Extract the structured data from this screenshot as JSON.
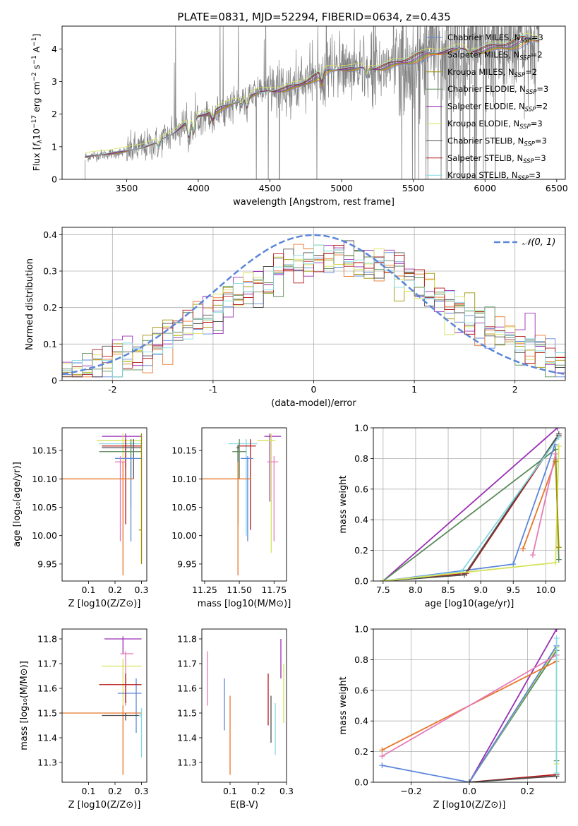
{
  "figure": {
    "title": "PLATE=0831, MJD=52294, FIBERID=0634, z=0.435"
  },
  "colors": {
    "chabrier_miles": "#5b86d9",
    "salpeter_miles": "#e8762b",
    "kroupa_miles": "#9e9200",
    "chabrier_elodie": "#5a8a5a",
    "salpeter_elodie": "#9b2fb4",
    "kroupa_elodie": "#d6e35a",
    "chabrier_stelib": "#505050",
    "salpeter_stelib": "#b41a1a",
    "kroupa_stelib": "#86d9e0",
    "pink": "#e67ab8",
    "data_gray": "#808080",
    "normal_curve": "#5b86d9"
  },
  "chart_data": [
    {
      "id": "spectrum",
      "type": "line",
      "title": "PLATE=0831, MJD=52294, FIBERID=0634, z=0.435",
      "xlabel": "wavelength [Angstrom, rest frame]",
      "ylabel": "Flux [f_λ 10^-17 erg cm^-2 s^-1 A^-1]",
      "xlim": [
        3050,
        6560
      ],
      "ylim": [
        0,
        4.7
      ],
      "xticks": [
        3500,
        4000,
        4500,
        5000,
        5500,
        6000,
        6500
      ],
      "yticks": [
        0,
        1,
        2,
        3,
        4
      ],
      "grid": false,
      "legend_position": "top-right",
      "legend": [
        {
          "base": "Chabrier MILES, N",
          "sub": "SSP",
          "val": "=3",
          "color": "#5b86d9"
        },
        {
          "base": "Salpeter MILES, N",
          "sub": "SSP",
          "val": "=2",
          "color": "#e8762b"
        },
        {
          "base": "Kroupa MILES, N",
          "sub": "SSP",
          "val": "=2",
          "color": "#9e9200"
        },
        {
          "base": "Chabrier ELODIE, N",
          "sub": "SSP",
          "val": "=3",
          "color": "#5a8a5a"
        },
        {
          "base": "Salpeter ELODIE, N",
          "sub": "SSP",
          "val": "=2",
          "color": "#9b2fb4"
        },
        {
          "base": "Kroupa ELODIE, N",
          "sub": "SSP",
          "val": "=3",
          "color": "#d6e35a"
        },
        {
          "base": "Chabrier STELIB, N",
          "sub": "SSP",
          "val": "=3",
          "color": "#505050"
        },
        {
          "base": "Salpeter STELIB, N",
          "sub": "SSP",
          "val": "=3",
          "color": "#b41a1a"
        },
        {
          "base": "Kroupa STELIB, N",
          "sub": "SSP",
          "val": "=3",
          "color": "#86d9e0"
        }
      ],
      "continuum": {
        "x": [
          3210,
          3300,
          3400,
          3500,
          3600,
          3700,
          3800,
          3900,
          4000,
          4100,
          4200,
          4300,
          4400,
          4500,
          4600,
          4700,
          4800,
          4900,
          5000,
          5100,
          5200,
          5300,
          5400,
          5500,
          5600,
          5700,
          5800,
          5900,
          6000,
          6100,
          6200,
          6300,
          6400
        ],
        "y": [
          0.7,
          0.75,
          0.8,
          0.85,
          0.95,
          1.1,
          1.35,
          1.7,
          1.95,
          2.05,
          2.2,
          2.4,
          2.6,
          2.75,
          2.8,
          2.9,
          3.1,
          3.25,
          3.35,
          3.35,
          3.45,
          3.5,
          3.6,
          3.7,
          3.75,
          3.85,
          3.95,
          4.0,
          4.05,
          4.1,
          4.15,
          4.2,
          4.2
        ]
      }
    },
    {
      "id": "residuals",
      "type": "area",
      "xlabel": "(data-model)/error",
      "ylabel": "Normed distribution",
      "xlim": [
        -2.5,
        2.5
      ],
      "ylim": [
        0,
        0.42
      ],
      "xticks": [
        -2,
        -1,
        0,
        1,
        2
      ],
      "yticks": [
        0.0,
        0.1,
        0.2,
        0.3,
        0.4
      ],
      "grid": true,
      "legend_position": "top-right",
      "legend": [
        {
          "name": "𝒩(0, 1)",
          "color": "#5b86d9",
          "style": "dashed"
        }
      ],
      "bin_width": 0.1,
      "bin_start": -2.5
    },
    {
      "id": "age_vs_Z",
      "type": "scatter",
      "xlabel": "Z [log10(Z/Z⊙)]",
      "ylabel": "age [log10(age/yr)]",
      "xlim": [
        0.0,
        0.32
      ],
      "ylim": [
        9.92,
        10.19
      ],
      "xticks": [
        "0.1",
        "0.2",
        "0.3"
      ],
      "yticks": [
        "9.95",
        "10.00",
        "10.05",
        "10.10",
        "10.15"
      ],
      "points": [
        {
          "x": 0.24,
          "y": 10.175,
          "xlo": 0.15,
          "xhi": 0.3,
          "ylo": 10.12,
          "yhi": 10.18,
          "color": "#9b2fb4"
        },
        {
          "x": 0.23,
          "y": 10.168,
          "xlo": 0.13,
          "xhi": 0.3,
          "ylo": 10.1,
          "yhi": 10.18,
          "color": "#d6e35a"
        },
        {
          "x": 0.26,
          "y": 10.162,
          "xlo": 0.14,
          "xhi": 0.3,
          "ylo": 10.05,
          "yhi": 10.17,
          "color": "#86d9e0"
        },
        {
          "x": 0.24,
          "y": 10.158,
          "xlo": 0.15,
          "xhi": 0.3,
          "ylo": 10.02,
          "yhi": 10.17,
          "color": "#b41a1a"
        },
        {
          "x": 0.27,
          "y": 10.155,
          "xlo": 0.15,
          "xhi": 0.3,
          "ylo": 10.1,
          "yhi": 10.17,
          "color": "#505050"
        },
        {
          "x": 0.26,
          "y": 10.148,
          "xlo": 0.14,
          "xhi": 0.3,
          "ylo": 10.1,
          "yhi": 10.17,
          "color": "#5a8a5a"
        },
        {
          "x": 0.26,
          "y": 10.136,
          "xlo": 0.2,
          "xhi": 0.3,
          "ylo": 9.99,
          "yhi": 10.14,
          "color": "#5b86d9"
        },
        {
          "x": 0.22,
          "y": 10.13,
          "xlo": 0.2,
          "xhi": 0.24,
          "ylo": 9.99,
          "yhi": 10.14,
          "color": "#e67ab8"
        },
        {
          "x": 0.23,
          "y": 10.1,
          "xlo": 0.0,
          "xhi": 0.27,
          "ylo": 9.93,
          "yhi": 10.13,
          "color": "#e8762b"
        },
        {
          "x": 0.3,
          "y": 10.01,
          "xlo": 0.29,
          "xhi": 0.3,
          "ylo": 9.95,
          "yhi": 10.18,
          "color": "#9e9200"
        }
      ]
    },
    {
      "id": "age_vs_mass",
      "type": "scatter",
      "xlabel": "mass [log10(M/M⊙)]",
      "ylabel": "",
      "xlim": [
        11.23,
        11.84
      ],
      "ylim": [
        9.92,
        10.19
      ],
      "xticks": [
        "11.25",
        "11.50",
        "11.75"
      ],
      "yticks": [
        "9.95",
        "10.00",
        "10.05",
        "10.10",
        "10.15"
      ],
      "points": [
        {
          "x": 11.72,
          "y": 10.175,
          "xlo": 11.68,
          "xhi": 11.8,
          "ylo": 10.06,
          "yhi": 10.18,
          "color": "#9b2fb4"
        },
        {
          "x": 11.73,
          "y": 10.168,
          "xlo": 11.63,
          "xhi": 11.76,
          "ylo": 9.97,
          "yhi": 10.18,
          "color": "#d6e35a"
        },
        {
          "x": 11.55,
          "y": 10.162,
          "xlo": 11.42,
          "xhi": 11.63,
          "ylo": 10.0,
          "yhi": 10.17,
          "color": "#86d9e0"
        },
        {
          "x": 11.58,
          "y": 10.158,
          "xlo": 11.49,
          "xhi": 11.62,
          "ylo": 10.01,
          "yhi": 10.17,
          "color": "#b41a1a"
        },
        {
          "x": 11.49,
          "y": 10.155,
          "xlo": 11.48,
          "xhi": 11.5,
          "ylo": 10.02,
          "yhi": 10.16,
          "color": "#505050"
        },
        {
          "x": 11.5,
          "y": 10.148,
          "xlo": 11.45,
          "xhi": 11.55,
          "ylo": 10.1,
          "yhi": 10.17,
          "color": "#5a8a5a"
        },
        {
          "x": 11.56,
          "y": 10.136,
          "xlo": 11.51,
          "xhi": 11.6,
          "ylo": 9.99,
          "yhi": 10.14,
          "color": "#5b86d9"
        },
        {
          "x": 11.75,
          "y": 10.13,
          "xlo": 11.7,
          "xhi": 11.78,
          "ylo": 9.99,
          "yhi": 10.14,
          "color": "#e67ab8"
        },
        {
          "x": 11.49,
          "y": 10.1,
          "xlo": 11.22,
          "xhi": 11.58,
          "ylo": 9.93,
          "yhi": 10.13,
          "color": "#e8762b"
        }
      ]
    },
    {
      "id": "weight_vs_age",
      "type": "line",
      "xlabel": "age [log10(age/yr)]",
      "ylabel": "mass weight",
      "xlim": [
        7.35,
        10.3
      ],
      "ylim": [
        0,
        1.0
      ],
      "xticks": [
        "7.5",
        "8.0",
        "8.5",
        "9.0",
        "9.5",
        "10.0"
      ],
      "yticks": [
        "0.0",
        "0.2",
        "0.4",
        "0.6",
        "0.8",
        "1.0"
      ],
      "grid": true,
      "series": [
        {
          "color": "#9b2fb4",
          "x": [
            7.5,
            10.18
          ],
          "y": [
            0.0,
            1.0
          ]
        },
        {
          "color": "#5a8a5a",
          "x": [
            7.5,
            10.15,
            10.2
          ],
          "y": [
            0.0,
            0.86,
            0.14
          ]
        },
        {
          "color": "#5b86d9",
          "x": [
            7.5,
            9.5,
            10.14
          ],
          "y": [
            0.0,
            0.11,
            0.89
          ]
        },
        {
          "color": "#b41a1a",
          "x": [
            7.5,
            8.78,
            10.2
          ],
          "y": [
            0.0,
            0.05,
            0.95
          ]
        },
        {
          "color": "#505050",
          "x": [
            7.5,
            8.75,
            10.2
          ],
          "y": [
            0.0,
            0.04,
            0.96
          ]
        },
        {
          "color": "#86d9e0",
          "x": [
            7.5,
            8.7,
            10.2
          ],
          "y": [
            0.0,
            0.06,
            0.94
          ]
        },
        {
          "color": "#e8762b",
          "x": [
            9.65,
            10.15
          ],
          "y": [
            0.21,
            0.79
          ]
        },
        {
          "color": "#e67ab8",
          "x": [
            9.8,
            10.15
          ],
          "y": [
            0.17,
            0.83
          ]
        },
        {
          "color": "#d6e35a",
          "x": [
            7.5,
            10.15,
            10.2
          ],
          "y": [
            0.0,
            0.12,
            0.88
          ]
        },
        {
          "color": "#9e9200",
          "x": [
            10.15,
            10.2
          ],
          "y": [
            0.78,
            0.22
          ]
        }
      ]
    },
    {
      "id": "mass_vs_Z",
      "type": "scatter",
      "xlabel": "Z [log10(Z/Z⊙)]",
      "ylabel": "mass [log10(M/M⊙)]",
      "xlim": [
        0.0,
        0.32
      ],
      "ylim": [
        11.22,
        11.84
      ],
      "xticks": [
        "0.1",
        "0.2",
        "0.3"
      ],
      "yticks": [
        "11.3",
        "11.4",
        "11.5",
        "11.6",
        "11.7",
        "11.8"
      ],
      "points": [
        {
          "x": 0.23,
          "y": 11.8,
          "xlo": 0.16,
          "xhi": 0.3,
          "ylo": 11.74,
          "yhi": 11.81,
          "color": "#9b2fb4"
        },
        {
          "x": 0.24,
          "y": 11.74,
          "xlo": 0.22,
          "xhi": 0.27,
          "ylo": 11.53,
          "yhi": 11.75,
          "color": "#e67ab8"
        },
        {
          "x": 0.23,
          "y": 11.69,
          "xlo": 0.15,
          "xhi": 0.3,
          "ylo": 11.52,
          "yhi": 11.72,
          "color": "#d6e35a"
        },
        {
          "x": 0.28,
          "y": 11.58,
          "xlo": 0.21,
          "xhi": 0.3,
          "ylo": 11.42,
          "yhi": 11.64,
          "color": "#5b86d9"
        },
        {
          "x": 0.24,
          "y": 11.615,
          "xlo": 0.14,
          "xhi": 0.3,
          "ylo": 11.54,
          "yhi": 11.66,
          "color": "#b41a1a"
        },
        {
          "x": 0.23,
          "y": 11.5,
          "xlo": 0.0,
          "xhi": 0.3,
          "ylo": 11.25,
          "yhi": 11.53,
          "color": "#e8762b"
        },
        {
          "x": 0.24,
          "y": 11.49,
          "xlo": 0.15,
          "xhi": 0.3,
          "ylo": 11.47,
          "yhi": 11.5,
          "color": "#505050"
        },
        {
          "x": 0.3,
          "y": 11.49,
          "xlo": 0.29,
          "xhi": 0.3,
          "ylo": 11.32,
          "yhi": 11.52,
          "color": "#86d9e0"
        }
      ]
    },
    {
      "id": "mass_vs_ebv",
      "type": "scatter",
      "xlabel": "E(B-V)",
      "ylabel": "",
      "xlim": [
        0.0,
        0.3
      ],
      "ylim": [
        11.22,
        11.84
      ],
      "xticks": [
        "0.1",
        "0.2",
        "0.3"
      ],
      "yticks": [
        "11.3",
        "11.4",
        "11.5",
        "11.6",
        "11.7",
        "11.8"
      ],
      "points": [
        {
          "x": 0.02,
          "y": 11.63,
          "ylo": 11.53,
          "yhi": 11.75,
          "color": "#e67ab8"
        },
        {
          "x": 0.08,
          "y": 11.53,
          "ylo": 11.43,
          "yhi": 11.64,
          "color": "#5b86d9"
        },
        {
          "x": 0.1,
          "y": 11.41,
          "ylo": 11.25,
          "yhi": 11.57,
          "color": "#e8762b"
        },
        {
          "x": 0.235,
          "y": 11.55,
          "ylo": 11.45,
          "yhi": 11.66,
          "color": "#b41a1a"
        },
        {
          "x": 0.245,
          "y": 11.47,
          "ylo": 11.38,
          "yhi": 11.57,
          "color": "#505050"
        },
        {
          "x": 0.26,
          "y": 11.43,
          "ylo": 11.33,
          "yhi": 11.54,
          "color": "#86d9e0"
        },
        {
          "x": 0.28,
          "y": 11.75,
          "ylo": 11.64,
          "yhi": 11.8,
          "color": "#9b2fb4"
        },
        {
          "x": 0.29,
          "y": 11.58,
          "ylo": 11.46,
          "yhi": 11.7,
          "color": "#d6e35a"
        }
      ]
    },
    {
      "id": "weight_vs_Z",
      "type": "line",
      "xlabel": "Z [log10(Z/Z⊙)]",
      "ylabel": "mass weight",
      "xlim": [
        -0.33,
        0.33
      ],
      "ylim": [
        0,
        1.0
      ],
      "xticks": [
        "−0.2",
        "0.0",
        "0.2"
      ],
      "yticks": [
        "0.0",
        "0.2",
        "0.4",
        "0.6",
        "0.8",
        "1.0"
      ],
      "grid": true,
      "series": [
        {
          "color": "#9b2fb4",
          "x": [
            0.0,
            0.3
          ],
          "y": [
            0.0,
            1.0
          ]
        },
        {
          "color": "#5a8a5a",
          "x": [
            0.0,
            0.3,
            0.3
          ],
          "y": [
            0.0,
            0.86,
            0.14
          ]
        },
        {
          "color": "#d6e35a",
          "x": [
            0.0,
            0.3,
            0.3
          ],
          "y": [
            0.0,
            0.88,
            0.12
          ]
        },
        {
          "color": "#5b86d9",
          "x": [
            -0.3,
            0.0,
            0.3,
            0.3
          ],
          "y": [
            0.11,
            0.0,
            0.89,
            0.89
          ]
        },
        {
          "color": "#e8762b",
          "x": [
            -0.3,
            0.3
          ],
          "y": [
            0.21,
            0.79
          ]
        },
        {
          "color": "#e67ab8",
          "x": [
            -0.3,
            0.3
          ],
          "y": [
            0.17,
            0.83
          ]
        },
        {
          "color": "#b41a1a",
          "x": [
            0.0,
            0.3
          ],
          "y": [
            0.0,
            0.05
          ]
        },
        {
          "color": "#505050",
          "x": [
            0.0,
            0.3
          ],
          "y": [
            0.0,
            0.04
          ]
        },
        {
          "color": "#86d9e0",
          "x": [
            0.3,
            0.3
          ],
          "y": [
            0.06,
            0.94
          ]
        }
      ]
    }
  ]
}
